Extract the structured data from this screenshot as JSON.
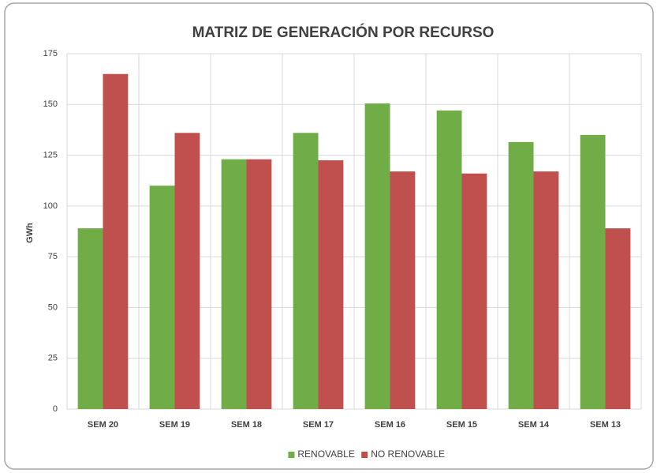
{
  "chart_data": {
    "type": "bar",
    "title": "MATRIZ DE GENERACIÓN POR RECURSO",
    "y_label": "GWh",
    "categories": [
      "SEM 20",
      "SEM 19",
      "SEM 18",
      "SEM 17",
      "SEM 16",
      "SEM 15",
      "SEM 14",
      "SEM 13"
    ],
    "series": [
      {
        "name": "RENOVABLE",
        "color": "#70ad47",
        "values": [
          89,
          110,
          123,
          136,
          150.5,
          147,
          131.5,
          135
        ]
      },
      {
        "name": "NO RENOVABLE",
        "color": "#c0504d",
        "values": [
          165,
          136,
          123,
          122.5,
          117,
          116,
          117,
          89
        ]
      }
    ],
    "ylim": [
      0,
      175
    ],
    "yticks": [
      0,
      25,
      50,
      75,
      100,
      125,
      150,
      175
    ],
    "grid": true,
    "legend": "bottom"
  }
}
